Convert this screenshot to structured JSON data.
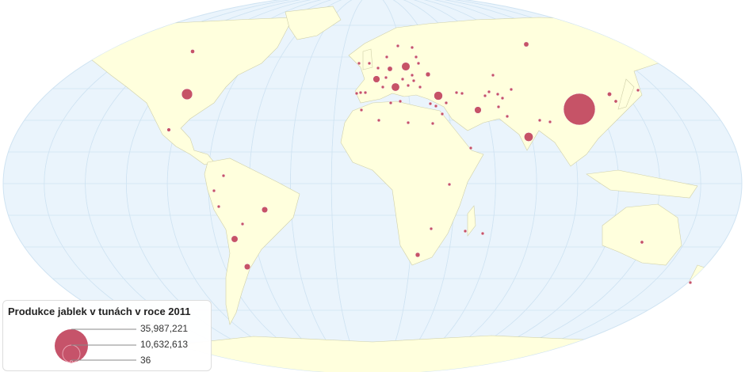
{
  "legend": {
    "title": "Produkce jablek v tunách v roce 2011",
    "max_label": "35,987,221",
    "mid_label": "10,632,613",
    "min_label": "36"
  },
  "colors": {
    "ocean": "#eaf4fc",
    "land": "#ffffdd",
    "border": "#cfcfa8",
    "graticule": "#cfe3f2",
    "bubble": "#c0405a"
  },
  "bubble_values": [
    35987221,
    4300000,
    2900000,
    2700000,
    2500000,
    2400000,
    1700000,
    1700000,
    1300000,
    1600000,
    1300000,
    800000,
    800000,
    900000,
    900000,
    650000,
    400000,
    500000,
    600000,
    400000,
    300000,
    100000,
    100000,
    100000,
    100000,
    100000,
    100000,
    100000,
    100000,
    100000,
    100000,
    100000,
    100000,
    100000,
    100000,
    100000,
    100000,
    100000,
    100000,
    100000,
    100000,
    100000,
    100000,
    100000,
    100000,
    100000,
    100000,
    100000,
    100000,
    100000,
    100000,
    100000,
    100000,
    100000,
    100000,
    100000,
    100000,
    100000,
    100000,
    100000,
    100000,
    100000,
    100000,
    100000,
    100000,
    100000,
    100000,
    100000,
    100000,
    100000,
    100000
  ]
}
